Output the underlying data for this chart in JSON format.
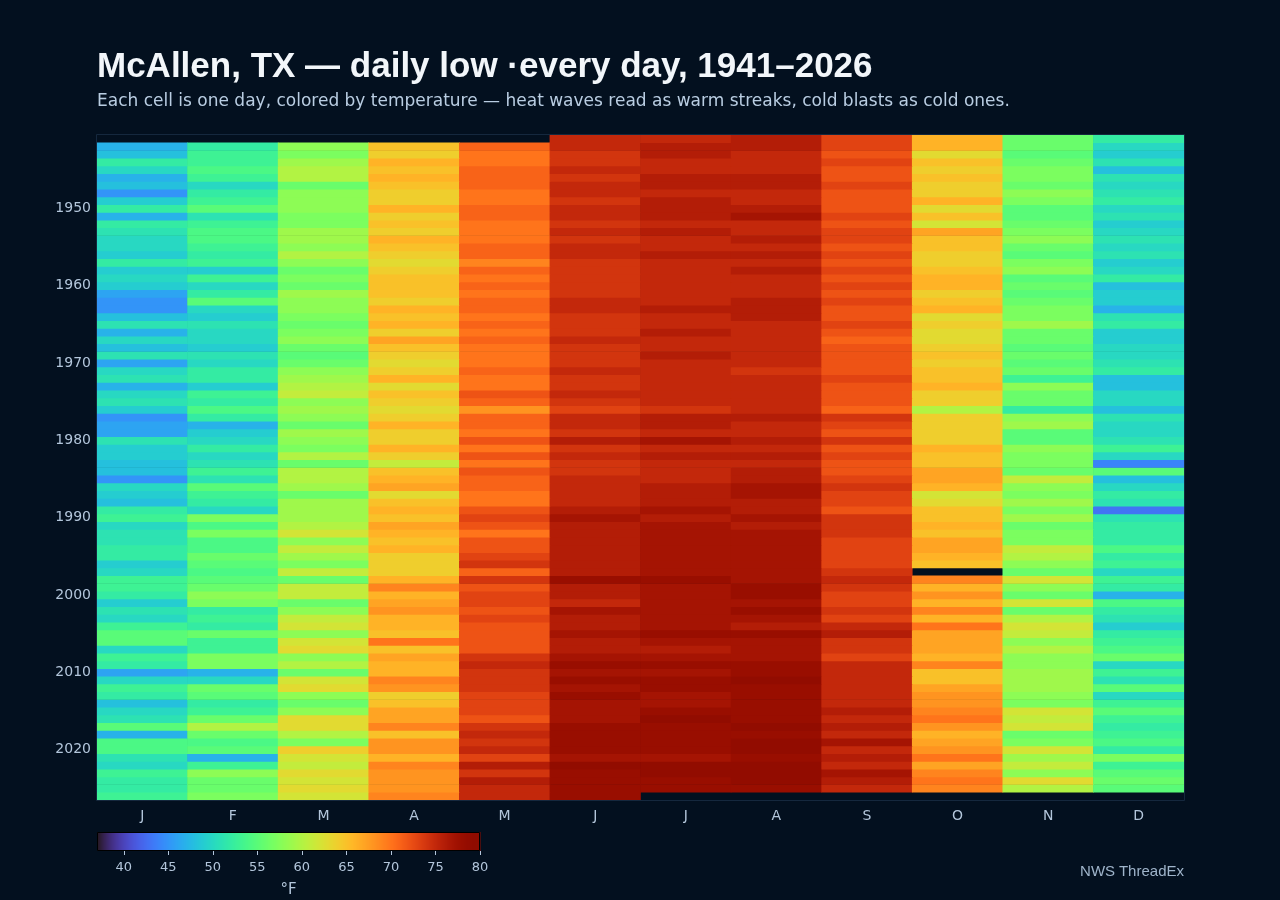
{
  "chart_data": {
    "type": "heatmap",
    "title": "McAllen, TX — daily low ·every day, 1941–2026",
    "subtitle": "Each cell is one day, colored by temperature — heat waves read as warm streaks, cold blasts as cold ones.",
    "categories": [
      "J",
      "F",
      "M",
      "A",
      "M",
      "J",
      "J",
      "A",
      "S",
      "O",
      "N",
      "D"
    ],
    "y_categories": [
      null,
      null,
      null,
      null,
      null,
      null,
      null,
      null,
      null,
      "1950",
      null,
      null,
      null,
      null,
      null,
      null,
      null,
      null,
      null,
      "1960",
      null,
      null,
      null,
      null,
      null,
      null,
      null,
      null,
      null,
      "1970",
      null,
      null,
      null,
      null,
      null,
      null,
      null,
      null,
      null,
      "1980",
      null,
      null,
      null,
      null,
      null,
      null,
      null,
      null,
      null,
      "1990",
      null,
      null,
      null,
      null,
      null,
      null,
      null,
      null,
      null,
      "2000",
      null,
      null,
      null,
      null,
      null,
      null,
      null,
      null,
      null,
      "2010",
      null,
      null,
      null,
      null,
      null,
      null,
      null,
      null,
      null,
      "2020",
      null,
      null,
      null,
      null,
      null,
      null
    ],
    "cells": [
      [
        null,
        null,
        null,
        null,
        null,
        75,
        75,
        76,
        73,
        66,
        56,
        52
      ],
      [
        47,
        52,
        58,
        65,
        71,
        75,
        76,
        76,
        73,
        66,
        56,
        50
      ],
      [
        48,
        53,
        57,
        64,
        70,
        74,
        76,
        75,
        72,
        63,
        55,
        49
      ],
      [
        52,
        53,
        59,
        66,
        70,
        74,
        75,
        75,
        73,
        65,
        56,
        51
      ],
      [
        50,
        54,
        60,
        65,
        71,
        75,
        75,
        75,
        72,
        64,
        57,
        48
      ],
      [
        47,
        53,
        60,
        66,
        71,
        74,
        76,
        76,
        72,
        65,
        57,
        51
      ],
      [
        48,
        50,
        56,
        65,
        71,
        75,
        76,
        76,
        73,
        64,
        56,
        50
      ],
      [
        45,
        52,
        58,
        64,
        70,
        75,
        75,
        75,
        72,
        64,
        58,
        51
      ],
      [
        49,
        53,
        58,
        64,
        70,
        74,
        76,
        75,
        72,
        66,
        57,
        52
      ],
      [
        52,
        55,
        58,
        66,
        71,
        75,
        76,
        76,
        72,
        63,
        55,
        50
      ],
      [
        47,
        51,
        57,
        64,
        71,
        75,
        76,
        77,
        73,
        65,
        55,
        51
      ],
      [
        52,
        53,
        57,
        65,
        70,
        74,
        75,
        75,
        72,
        62,
        56,
        49
      ],
      [
        51,
        54,
        59,
        64,
        70,
        75,
        76,
        75,
        73,
        67,
        57,
        50
      ],
      [
        50,
        54,
        59,
        66,
        70,
        74,
        75,
        76,
        73,
        65,
        58,
        51
      ],
      [
        50,
        53,
        58,
        65,
        71,
        75,
        75,
        75,
        72,
        65,
        56,
        50
      ],
      [
        49,
        52,
        60,
        64,
        71,
        75,
        76,
        76,
        73,
        64,
        55,
        51
      ],
      [
        52,
        53,
        58,
        63,
        69,
        74,
        75,
        75,
        72,
        64,
        57,
        49
      ],
      [
        49,
        49,
        56,
        64,
        71,
        74,
        75,
        76,
        73,
        65,
        58,
        50
      ],
      [
        50,
        53,
        57,
        65,
        70,
        74,
        75,
        75,
        72,
        66,
        55,
        52
      ],
      [
        49,
        50,
        56,
        65,
        71,
        74,
        75,
        75,
        73,
        66,
        56,
        48
      ],
      [
        46,
        52,
        59,
        65,
        70,
        74,
        75,
        75,
        72,
        64,
        55,
        49
      ],
      [
        45,
        55,
        58,
        64,
        71,
        75,
        75,
        76,
        73,
        65,
        56,
        49
      ],
      [
        45,
        50,
        58,
        66,
        71,
        75,
        76,
        76,
        72,
        66,
        57,
        47
      ],
      [
        48,
        49,
        57,
        65,
        70,
        74,
        75,
        76,
        72,
        63,
        57,
        51
      ],
      [
        51,
        51,
        56,
        66,
        71,
        74,
        75,
        75,
        73,
        64,
        59,
        52
      ],
      [
        47,
        50,
        57,
        64,
        70,
        74,
        76,
        75,
        72,
        63,
        56,
        49
      ],
      [
        50,
        50,
        58,
        67,
        71,
        75,
        75,
        75,
        71,
        63,
        56,
        49
      ],
      [
        48,
        49,
        56,
        65,
        70,
        74,
        75,
        75,
        72,
        64,
        55,
        50
      ],
      [
        51,
        51,
        55,
        64,
        70,
        74,
        76,
        75,
        72,
        65,
        56,
        50
      ],
      [
        46,
        50,
        56,
        63,
        70,
        74,
        75,
        75,
        72,
        64,
        55,
        51
      ],
      [
        50,
        52,
        58,
        64,
        71,
        75,
        75,
        74,
        72,
        65,
        56,
        52
      ],
      [
        51,
        52,
        59,
        66,
        70,
        74,
        75,
        75,
        73,
        65,
        53,
        48
      ],
      [
        47,
        49,
        60,
        63,
        70,
        74,
        75,
        75,
        72,
        66,
        58,
        48
      ],
      [
        50,
        53,
        61,
        65,
        72,
        75,
        75,
        75,
        72,
        64,
        56,
        50
      ],
      [
        51,
        52,
        58,
        64,
        71,
        74,
        75,
        75,
        72,
        64,
        56,
        50
      ],
      [
        49,
        54,
        59,
        63,
        68,
        73,
        74,
        75,
        71,
        60,
        52,
        48
      ],
      [
        45,
        52,
        58,
        64,
        71,
        75,
        76,
        76,
        74,
        64,
        58,
        51
      ],
      [
        46,
        47,
        56,
        66,
        71,
        75,
        76,
        75,
        73,
        64,
        59,
        50
      ],
      [
        46,
        49,
        59,
        64,
        70,
        74,
        75,
        75,
        72,
        64,
        55,
        50
      ],
      [
        51,
        50,
        58,
        64,
        72,
        76,
        77,
        76,
        74,
        64,
        55,
        51
      ],
      [
        49,
        52,
        57,
        66,
        70,
        74,
        75,
        75,
        72,
        66,
        58,
        53
      ],
      [
        49,
        50,
        60,
        64,
        72,
        75,
        76,
        76,
        73,
        65,
        57,
        50
      ],
      [
        48,
        51,
        56,
        61,
        70,
        74,
        75,
        75,
        72,
        65,
        57,
        44
      ],
      [
        48,
        53,
        60,
        65,
        72,
        74,
        75,
        76,
        72,
        67,
        56,
        55
      ],
      [
        45,
        51,
        60,
        66,
        71,
        75,
        75,
        76,
        73,
        67,
        61,
        48
      ],
      [
        50,
        55,
        59,
        67,
        71,
        75,
        76,
        77,
        74,
        66,
        58,
        50
      ],
      [
        49,
        53,
        56,
        63,
        70,
        75,
        76,
        77,
        73,
        62,
        57,
        52
      ],
      [
        48,
        52,
        59,
        65,
        70,
        75,
        76,
        76,
        73,
        63,
        59,
        51
      ],
      [
        52,
        50,
        59,
        66,
        72,
        76,
        77,
        76,
        72,
        65,
        57,
        43
      ],
      [
        53,
        57,
        59,
        65,
        73,
        77,
        76,
        77,
        74,
        65,
        59,
        51
      ],
      [
        50,
        54,
        60,
        67,
        72,
        76,
        77,
        76,
        74,
        66,
        56,
        52
      ],
      [
        51,
        57,
        62,
        66,
        70,
        76,
        77,
        77,
        74,
        65,
        57,
        52
      ],
      [
        51,
        54,
        58,
        65,
        72,
        76,
        77,
        77,
        73,
        67,
        57,
        52
      ],
      [
        52,
        54,
        61,
        66,
        72,
        76,
        77,
        77,
        73,
        67,
        61,
        54
      ],
      [
        52,
        56,
        59,
        64,
        73,
        76,
        77,
        77,
        73,
        66,
        60,
        52
      ],
      [
        49,
        55,
        57,
        64,
        74,
        76,
        77,
        77,
        73,
        65,
        58,
        53
      ],
      [
        50,
        54,
        61,
        64,
        71,
        76,
        77,
        77,
        74,
        null,
        56,
        50
      ],
      [
        53,
        55,
        56,
        66,
        74,
        78,
        78,
        77,
        75,
        69,
        62,
        53
      ],
      [
        53,
        56,
        61,
        69,
        72,
        76,
        77,
        78,
        74,
        66,
        58,
        52
      ],
      [
        52,
        58,
        61,
        66,
        73,
        76,
        77,
        78,
        73,
        68,
        56,
        47
      ],
      [
        49,
        57,
        56,
        67,
        73,
        75,
        77,
        77,
        73,
        66,
        62,
        54
      ],
      [
        51,
        52,
        58,
        68,
        72,
        77,
        77,
        78,
        74,
        69,
        56,
        52
      ],
      [
        50,
        53,
        61,
        66,
        73,
        76,
        77,
        77,
        73,
        66,
        60,
        51
      ],
      [
        53,
        52,
        62,
        66,
        72,
        76,
        77,
        76,
        75,
        70,
        62,
        49
      ],
      [
        55,
        56,
        58,
        65,
        72,
        77,
        78,
        78,
        76,
        67,
        61,
        52
      ],
      [
        55,
        53,
        62,
        70,
        72,
        76,
        77,
        77,
        74,
        67,
        58,
        53
      ],
      [
        50,
        53,
        63,
        65,
        72,
        76,
        76,
        77,
        74,
        67,
        60,
        54
      ],
      [
        53,
        57,
        58,
        67,
        74,
        77,
        77,
        77,
        73,
        66,
        58,
        56
      ],
      [
        52,
        57,
        60,
        66,
        75,
        78,
        78,
        78,
        75,
        69,
        58,
        50
      ],
      [
        46,
        47,
        56,
        66,
        74,
        77,
        77,
        78,
        75,
        65,
        59,
        53
      ],
      [
        50,
        50,
        62,
        69,
        74,
        78,
        78,
        79,
        75,
        65,
        59,
        51
      ],
      [
        53,
        56,
        63,
        68,
        74,
        77,
        78,
        78,
        75,
        67,
        59,
        55
      ],
      [
        52,
        55,
        58,
        64,
        73,
        78,
        77,
        78,
        75,
        68,
        58,
        50
      ],
      [
        48,
        52,
        56,
        65,
        73,
        77,
        77,
        78,
        75,
        68,
        57,
        53
      ],
      [
        50,
        53,
        58,
        67,
        73,
        77,
        78,
        78,
        76,
        69,
        62,
        55
      ],
      [
        51,
        56,
        63,
        67,
        72,
        77,
        79,
        78,
        75,
        70,
        61,
        53
      ],
      [
        55,
        60,
        63,
        69,
        74,
        78,
        78,
        79,
        76,
        68,
        62,
        52
      ],
      [
        47,
        56,
        60,
        65,
        75,
        78,
        78,
        78,
        75,
        66,
        56,
        53
      ],
      [
        54,
        54,
        57,
        68,
        74,
        78,
        78,
        79,
        77,
        67,
        57,
        54
      ],
      [
        54,
        55,
        64,
        68,
        75,
        78,
        78,
        79,
        75,
        68,
        62,
        52
      ],
      [
        51,
        47,
        62,
        66,
        73,
        77,
        77,
        78,
        76,
        70,
        59,
        57
      ],
      [
        50,
        53,
        61,
        69,
        76,
        79,
        79,
        79,
        75,
        67,
        61,
        53
      ],
      [
        53,
        58,
        63,
        68,
        74,
        78,
        79,
        79,
        77,
        69,
        58,
        55
      ],
      [
        52,
        56,
        62,
        68,
        76,
        78,
        78,
        79,
        76,
        70,
        63,
        56
      ],
      [
        52,
        56,
        63,
        68,
        75,
        78,
        78,
        78,
        75,
        69,
        60,
        55
      ],
      [
        53,
        57,
        62,
        69,
        75,
        78,
        null,
        null,
        null,
        null,
        null,
        null
      ]
    ],
    "clim": [
      37,
      80
    ],
    "cticks": [
      40,
      45,
      50,
      55,
      60,
      65,
      70,
      75,
      80
    ],
    "clabel": "°F",
    "annotations": [
      "NWS ThreadEx"
    ]
  }
}
